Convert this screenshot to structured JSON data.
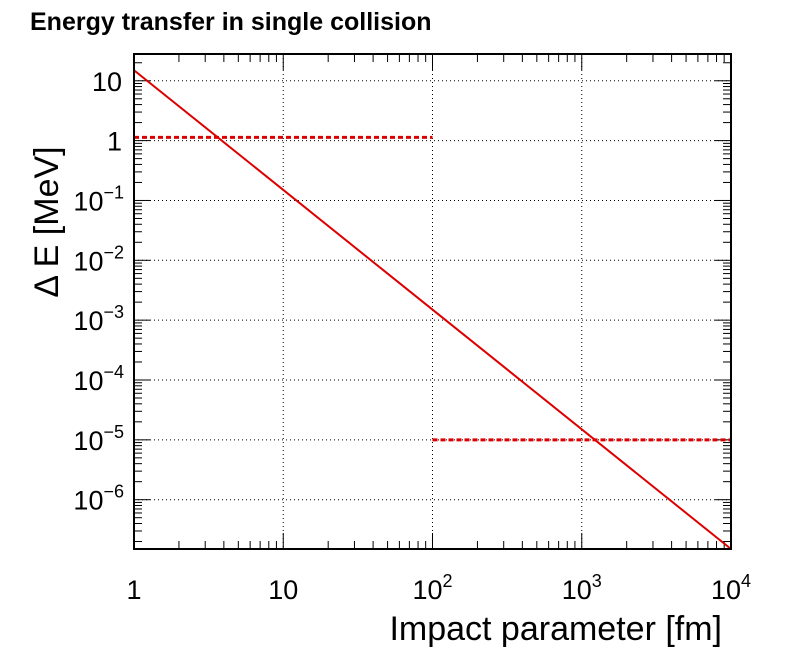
{
  "chart_data": {
    "type": "line",
    "title": "Energy transfer in single collision",
    "xlabel": "Impact parameter [fm]",
    "ylabel": "Δ E  [MeV]",
    "x_scale": "log",
    "y_scale": "log",
    "xlim": [
      1,
      10000
    ],
    "ylim": [
      1.5e-07,
      28
    ],
    "grid": true,
    "legend": "none",
    "x_ticks": [
      {
        "value": 1,
        "label": "1"
      },
      {
        "value": 10,
        "label": "10"
      },
      {
        "value": 100,
        "label": "10",
        "exponent": "2"
      },
      {
        "value": 1000,
        "label": "10",
        "exponent": "3"
      },
      {
        "value": 10000,
        "label": "10",
        "exponent": "4"
      }
    ],
    "y_ticks": [
      {
        "value": 1e-06,
        "label": "10",
        "exponent": "−6"
      },
      {
        "value": 1e-05,
        "label": "10",
        "exponent": "−5"
      },
      {
        "value": 0.0001,
        "label": "10",
        "exponent": "−4"
      },
      {
        "value": 0.001,
        "label": "10",
        "exponent": "−3"
      },
      {
        "value": 0.01,
        "label": "10",
        "exponent": "−2"
      },
      {
        "value": 0.1,
        "label": "10",
        "exponent": "−1"
      },
      {
        "value": 1,
        "label": "1"
      },
      {
        "value": 10,
        "label": "10"
      }
    ],
    "series": [
      {
        "style": "solid",
        "color": "#dd0000",
        "x": [
          1,
          10000
        ],
        "y": [
          15,
          1.5e-07
        ]
      },
      {
        "style": "dashed",
        "color": "#dd0000",
        "x": [
          1,
          100
        ],
        "y": [
          1.13,
          1.13
        ]
      },
      {
        "style": "dashed",
        "color": "#dd0000",
        "x": [
          100,
          10000
        ],
        "y": [
          1e-05,
          1e-05
        ]
      }
    ]
  }
}
